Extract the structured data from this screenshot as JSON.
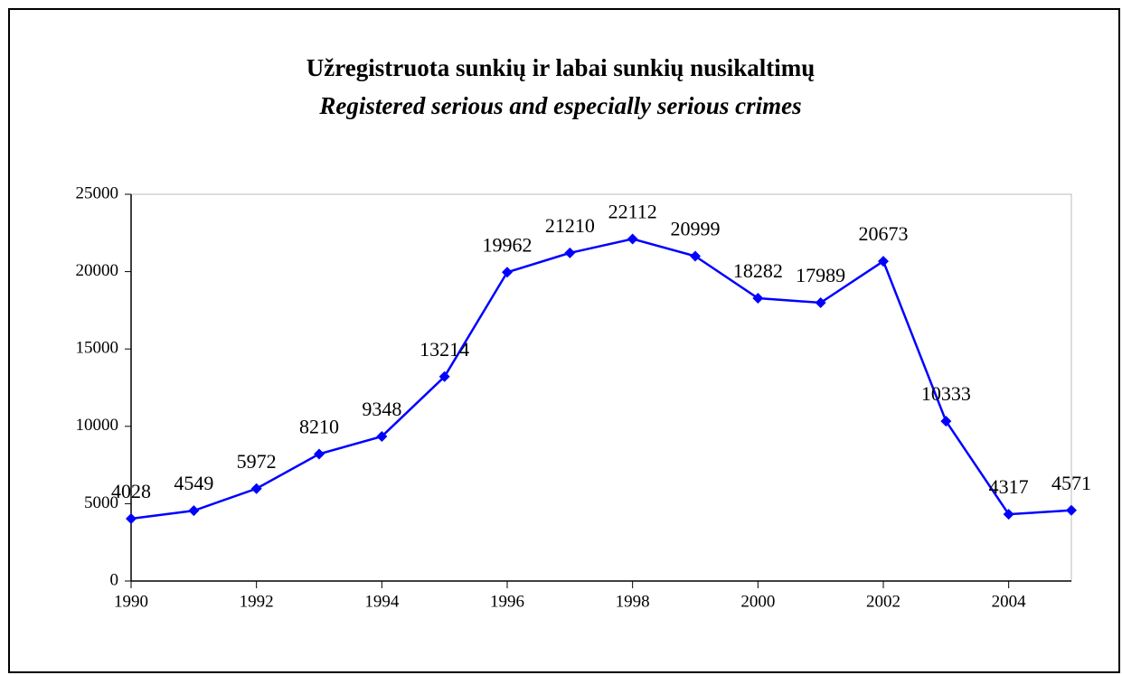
{
  "chart_data": {
    "type": "line",
    "title": "Užregistruota sunkių ir labai sunkių nusikaltimų",
    "subtitle": "Registered serious and especially serious crimes",
    "x": [
      1990,
      1991,
      1992,
      1993,
      1994,
      1995,
      1996,
      1997,
      1998,
      1999,
      2000,
      2001,
      2002,
      2003,
      2004,
      2005
    ],
    "series": [
      {
        "name": "Registered serious and especially serious crimes",
        "color": "#0000ff",
        "values": [
          4028,
          4549,
          5972,
          8210,
          9348,
          13214,
          19962,
          21210,
          22112,
          20999,
          18282,
          17989,
          20673,
          10333,
          4317,
          4571
        ]
      }
    ],
    "xlim": [
      1990,
      2005
    ],
    "xticks": [
      1990,
      1992,
      1994,
      1996,
      1998,
      2000,
      2002,
      2004
    ],
    "ylim": [
      0,
      25000
    ],
    "yticks": [
      0,
      5000,
      10000,
      15000,
      20000,
      25000
    ]
  }
}
